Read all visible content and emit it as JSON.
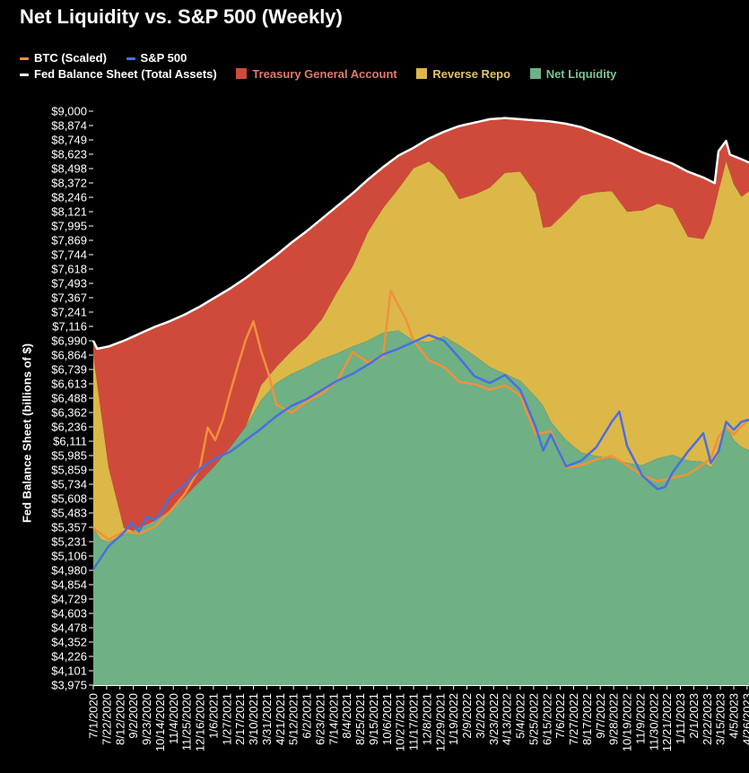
{
  "chart_data": {
    "type": "area",
    "title": "Net Liquidity vs. S&P 500 (Weekly)",
    "ylabel": "Fed Balance Sheet (billions of $)",
    "xlabel": "",
    "ylim": [
      3975,
      9000
    ],
    "grid": false,
    "legend_placement": "top-left",
    "y_ticks": [
      "$9,000",
      "$8,874",
      "$8,749",
      "$8,623",
      "$8,498",
      "$8,372",
      "$8,246",
      "$8,121",
      "$7,995",
      "$7,869",
      "$7,744",
      "$7,618",
      "$7,493",
      "$7,367",
      "$7,241",
      "$7,116",
      "$6,990",
      "$6,864",
      "$6,739",
      "$6,613",
      "$6,488",
      "$6,362",
      "$6,236",
      "$6,111",
      "$5,985",
      "$5,859",
      "$5,734",
      "$5,608",
      "$5,483",
      "$5,357",
      "$5,231",
      "$5,106",
      "$4,980",
      "$4,854",
      "$4,729",
      "$4,603",
      "$4,478",
      "$4,352",
      "$4,226",
      "$4,101",
      "$3,975"
    ],
    "x_ticks": [
      "7/1/2020",
      "7/22/2020",
      "8/12/2020",
      "9/2/2020",
      "9/23/2020",
      "10/14/2020",
      "11/4/2020",
      "11/25/2020",
      "12/16/2020",
      "1/6/2021",
      "1/27/2021",
      "2/17/2021",
      "3/10/2021",
      "3/31/2021",
      "4/21/2021",
      "5/12/2021",
      "6/2/2021",
      "6/23/2021",
      "7/14/2021",
      "8/4/2021",
      "8/25/2021",
      "9/15/2021",
      "10/6/2021",
      "10/27/2021",
      "11/17/2021",
      "12/8/2021",
      "12/29/2021",
      "1/19/2022",
      "2/9/2022",
      "3/2/2022",
      "3/23/2022",
      "4/13/2022",
      "5/4/2022",
      "5/25/2022",
      "6/15/2022",
      "7/6/2022",
      "7/27/2022",
      "8/17/2022",
      "9/7/2022",
      "9/28/2022",
      "10/19/2022",
      "11/9/2022",
      "11/30/2022",
      "12/21/2022",
      "1/11/2023",
      "2/1/2023",
      "2/22/2023",
      "3/15/2023",
      "4/5/2023",
      "4/26/2023"
    ],
    "legend": [
      {
        "name": "BTC (Scaled)",
        "kind": "line",
        "color": "#f0913a"
      },
      {
        "name": "S&P 500",
        "kind": "line",
        "color": "#4a6fe0"
      },
      {
        "name": "Fed Balance Sheet (Total Assets)",
        "kind": "line",
        "color": "#ffffff"
      },
      {
        "name": "Treasury General Account",
        "kind": "area",
        "color": "#cf4a3a"
      },
      {
        "name": "Reverse Repo",
        "kind": "area",
        "color": "#dcb848"
      },
      {
        "name": "Net Liquidity",
        "kind": "area",
        "color": "#6fb084"
      }
    ],
    "x_range": [
      "7/1/2020",
      "5/3/2023"
    ],
    "series": {
      "fed_balance_sheet": [
        [
          0,
          6990
        ],
        [
          1,
          6920
        ],
        [
          4,
          6940
        ],
        [
          8,
          6990
        ],
        [
          12,
          7050
        ],
        [
          16,
          7110
        ],
        [
          20,
          7160
        ],
        [
          24,
          7220
        ],
        [
          28,
          7290
        ],
        [
          32,
          7370
        ],
        [
          36,
          7450
        ],
        [
          40,
          7540
        ],
        [
          44,
          7640
        ],
        [
          48,
          7740
        ],
        [
          52,
          7850
        ],
        [
          56,
          7950
        ],
        [
          60,
          8060
        ],
        [
          64,
          8170
        ],
        [
          68,
          8280
        ],
        [
          72,
          8400
        ],
        [
          76,
          8510
        ],
        [
          80,
          8610
        ],
        [
          84,
          8680
        ],
        [
          88,
          8760
        ],
        [
          92,
          8820
        ],
        [
          96,
          8870
        ],
        [
          100,
          8900
        ],
        [
          104,
          8930
        ],
        [
          108,
          8940
        ],
        [
          112,
          8930
        ],
        [
          116,
          8920
        ],
        [
          120,
          8910
        ],
        [
          124,
          8890
        ],
        [
          128,
          8860
        ],
        [
          132,
          8810
        ],
        [
          136,
          8760
        ],
        [
          140,
          8700
        ],
        [
          144,
          8640
        ],
        [
          148,
          8590
        ],
        [
          152,
          8540
        ],
        [
          156,
          8470
        ],
        [
          160,
          8420
        ],
        [
          163,
          8370
        ],
        [
          164,
          8650
        ],
        [
          166,
          8740
        ],
        [
          167,
          8620
        ],
        [
          170,
          8580
        ],
        [
          172,
          8550
        ]
      ],
      "tga_bottom": [
        [
          0,
          6860
        ],
        [
          4,
          5880
        ],
        [
          8,
          5350
        ],
        [
          12,
          5310
        ],
        [
          16,
          5380
        ],
        [
          20,
          5480
        ],
        [
          24,
          5600
        ],
        [
          28,
          5760
        ],
        [
          32,
          5900
        ],
        [
          36,
          6060
        ],
        [
          40,
          6240
        ],
        [
          44,
          6600
        ],
        [
          48,
          6760
        ],
        [
          52,
          6900
        ],
        [
          56,
          7020
        ],
        [
          60,
          7180
        ],
        [
          64,
          7420
        ],
        [
          68,
          7640
        ],
        [
          72,
          7940
        ],
        [
          76,
          8150
        ],
        [
          80,
          8320
        ],
        [
          84,
          8500
        ],
        [
          88,
          8560
        ],
        [
          92,
          8450
        ],
        [
          96,
          8230
        ],
        [
          100,
          8270
        ],
        [
          104,
          8330
        ],
        [
          108,
          8460
        ],
        [
          112,
          8470
        ],
        [
          116,
          8280
        ],
        [
          118,
          7980
        ],
        [
          120,
          7990
        ],
        [
          124,
          8120
        ],
        [
          128,
          8260
        ],
        [
          132,
          8290
        ],
        [
          136,
          8300
        ],
        [
          140,
          8120
        ],
        [
          144,
          8130
        ],
        [
          148,
          8190
        ],
        [
          152,
          8150
        ],
        [
          156,
          7900
        ],
        [
          160,
          7880
        ],
        [
          162,
          8020
        ],
        [
          164,
          8300
        ],
        [
          166,
          8560
        ],
        [
          168,
          8360
        ],
        [
          170,
          8250
        ],
        [
          172,
          8300
        ]
      ],
      "reverse_repo_bottom": [
        [
          0,
          5350
        ],
        [
          2,
          5250
        ],
        [
          4,
          5230
        ],
        [
          8,
          5290
        ],
        [
          12,
          5350
        ],
        [
          16,
          5410
        ],
        [
          20,
          5500
        ],
        [
          24,
          5620
        ],
        [
          28,
          5760
        ],
        [
          32,
          5900
        ],
        [
          36,
          6060
        ],
        [
          40,
          6240
        ],
        [
          44,
          6470
        ],
        [
          48,
          6620
        ],
        [
          52,
          6700
        ],
        [
          56,
          6760
        ],
        [
          60,
          6830
        ],
        [
          64,
          6880
        ],
        [
          68,
          6940
        ],
        [
          72,
          6990
        ],
        [
          76,
          7060
        ],
        [
          80,
          7080
        ],
        [
          84,
          6990
        ],
        [
          88,
          6980
        ],
        [
          92,
          7030
        ],
        [
          96,
          6950
        ],
        [
          100,
          6860
        ],
        [
          104,
          6760
        ],
        [
          108,
          6700
        ],
        [
          112,
          6640
        ],
        [
          116,
          6500
        ],
        [
          118,
          6420
        ],
        [
          120,
          6280
        ],
        [
          124,
          6120
        ],
        [
          128,
          6010
        ],
        [
          132,
          5980
        ],
        [
          136,
          5960
        ],
        [
          140,
          5920
        ],
        [
          144,
          5900
        ],
        [
          148,
          5960
        ],
        [
          152,
          5990
        ],
        [
          156,
          5940
        ],
        [
          160,
          5930
        ],
        [
          162,
          5880
        ],
        [
          164,
          5990
        ],
        [
          166,
          6250
        ],
        [
          168,
          6120
        ],
        [
          170,
          6060
        ],
        [
          172,
          6030
        ]
      ],
      "sp500": [
        [
          0,
          4990
        ],
        [
          4,
          5190
        ],
        [
          8,
          5310
        ],
        [
          10,
          5400
        ],
        [
          12,
          5320
        ],
        [
          14,
          5450
        ],
        [
          16,
          5420
        ],
        [
          18,
          5500
        ],
        [
          20,
          5620
        ],
        [
          24,
          5730
        ],
        [
          28,
          5870
        ],
        [
          32,
          5960
        ],
        [
          36,
          6020
        ],
        [
          40,
          6120
        ],
        [
          44,
          6220
        ],
        [
          48,
          6330
        ],
        [
          52,
          6420
        ],
        [
          56,
          6480
        ],
        [
          60,
          6560
        ],
        [
          64,
          6640
        ],
        [
          68,
          6700
        ],
        [
          72,
          6780
        ],
        [
          76,
          6870
        ],
        [
          80,
          6920
        ],
        [
          84,
          6980
        ],
        [
          88,
          7040
        ],
        [
          92,
          6990
        ],
        [
          96,
          6840
        ],
        [
          100,
          6680
        ],
        [
          104,
          6620
        ],
        [
          108,
          6690
        ],
        [
          112,
          6560
        ],
        [
          116,
          6240
        ],
        [
          118,
          6030
        ],
        [
          120,
          6170
        ],
        [
          124,
          5890
        ],
        [
          128,
          5940
        ],
        [
          132,
          6060
        ],
        [
          136,
          6280
        ],
        [
          138,
          6370
        ],
        [
          140,
          6070
        ],
        [
          144,
          5810
        ],
        [
          148,
          5690
        ],
        [
          150,
          5710
        ],
        [
          152,
          5840
        ],
        [
          156,
          6020
        ],
        [
          160,
          6180
        ],
        [
          162,
          5920
        ],
        [
          164,
          6020
        ],
        [
          166,
          6280
        ],
        [
          168,
          6210
        ],
        [
          170,
          6280
        ],
        [
          172,
          6300
        ]
      ],
      "btc": [
        [
          0,
          5350
        ],
        [
          4,
          5250
        ],
        [
          8,
          5320
        ],
        [
          12,
          5300
        ],
        [
          16,
          5360
        ],
        [
          20,
          5490
        ],
        [
          24,
          5650
        ],
        [
          28,
          5880
        ],
        [
          30,
          6230
        ],
        [
          32,
          6120
        ],
        [
          34,
          6300
        ],
        [
          36,
          6550
        ],
        [
          38,
          6780
        ],
        [
          40,
          7000
        ],
        [
          42,
          7160
        ],
        [
          44,
          6900
        ],
        [
          46,
          6700
        ],
        [
          48,
          6430
        ],
        [
          52,
          6360
        ],
        [
          56,
          6460
        ],
        [
          60,
          6530
        ],
        [
          64,
          6640
        ],
        [
          68,
          6890
        ],
        [
          72,
          6800
        ],
        [
          76,
          6850
        ],
        [
          78,
          7430
        ],
        [
          80,
          7300
        ],
        [
          82,
          7180
        ],
        [
          84,
          6990
        ],
        [
          88,
          6820
        ],
        [
          92,
          6760
        ],
        [
          96,
          6630
        ],
        [
          100,
          6610
        ],
        [
          104,
          6560
        ],
        [
          108,
          6600
        ],
        [
          112,
          6510
        ],
        [
          116,
          6170
        ],
        [
          120,
          6200
        ],
        [
          124,
          5880
        ],
        [
          128,
          5900
        ],
        [
          132,
          5950
        ],
        [
          136,
          5980
        ],
        [
          140,
          5900
        ],
        [
          144,
          5810
        ],
        [
          148,
          5760
        ],
        [
          152,
          5790
        ],
        [
          156,
          5820
        ],
        [
          160,
          5910
        ],
        [
          162,
          5960
        ],
        [
          164,
          6150
        ],
        [
          166,
          6230
        ],
        [
          168,
          6170
        ],
        [
          170,
          6240
        ],
        [
          172,
          6300
        ]
      ]
    }
  }
}
